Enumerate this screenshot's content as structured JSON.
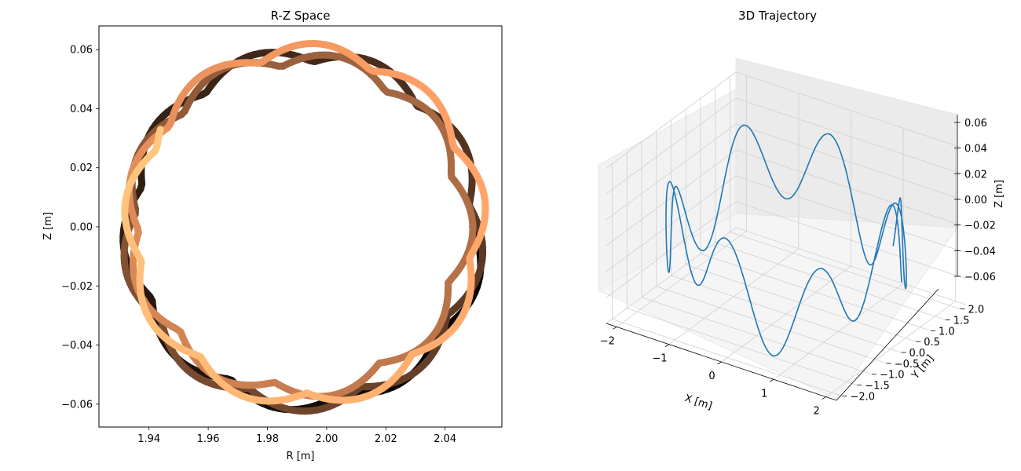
{
  "chart_data": [
    {
      "type": "scatter",
      "title": "R-Z Space",
      "xlabel": "R [m]",
      "ylabel": "Z [m]",
      "xlim": [
        1.923,
        2.06
      ],
      "ylim": [
        -0.068,
        0.068
      ],
      "xticks": [
        1.94,
        1.96,
        1.98,
        2.0,
        2.02,
        2.04
      ],
      "xtick_labels": [
        "1.94",
        "1.96",
        "1.98",
        "2.00",
        "2.02",
        "2.04"
      ],
      "yticks": [
        -0.06,
        -0.04,
        -0.02,
        0.0,
        0.02,
        0.04,
        0.06
      ],
      "ytick_labels": [
        "−0.06",
        "−0.04",
        "−0.02",
        "0.00",
        "0.02",
        "0.04",
        "0.06"
      ],
      "colormap": "copper",
      "colormap_start": "#000000",
      "colormap_end": "#ffc77f",
      "center_r": 1.992,
      "center_z": 0.0,
      "series": [
        {
          "start_r": 2.04,
          "start_z": 0.0,
          "end_r": 1.966,
          "end_z": 0.056,
          "description_of_motion": "drifting cusped orbit, 8-fold petal pattern"
        }
      ],
      "grid": false
    },
    {
      "type": "line",
      "title": "3D Trajectory",
      "xlabel": "X [m]",
      "ylabel": "Y [m]",
      "zlabel": "Z [m]",
      "xlim": [
        -2.2,
        2.2
      ],
      "ylim": [
        -2.2,
        2.2
      ],
      "zlim": [
        -0.06,
        0.06
      ],
      "xticks": [
        -2,
        -1,
        0,
        1,
        2
      ],
      "xtick_labels": [
        "−2",
        "−1",
        "0",
        "1",
        "2"
      ],
      "yticks": [
        -2.0,
        -1.5,
        -1.0,
        -0.5,
        0.0,
        0.5,
        1.0,
        1.5,
        2.0
      ],
      "ytick_labels": [
        "−2.0",
        "−1.5",
        "−1.0",
        "−0.5",
        "0.0",
        "0.5",
        "1.0",
        "1.5",
        "2.0"
      ],
      "zticks": [
        -0.06,
        -0.04,
        -0.02,
        0.0,
        0.02,
        0.04,
        0.06
      ],
      "ztick_labels": [
        "−0.06",
        "−0.04",
        "−0.02",
        "0.00",
        "0.02",
        "0.04",
        "0.06"
      ],
      "line_color": "#1f77b4",
      "grid": true
    }
  ]
}
